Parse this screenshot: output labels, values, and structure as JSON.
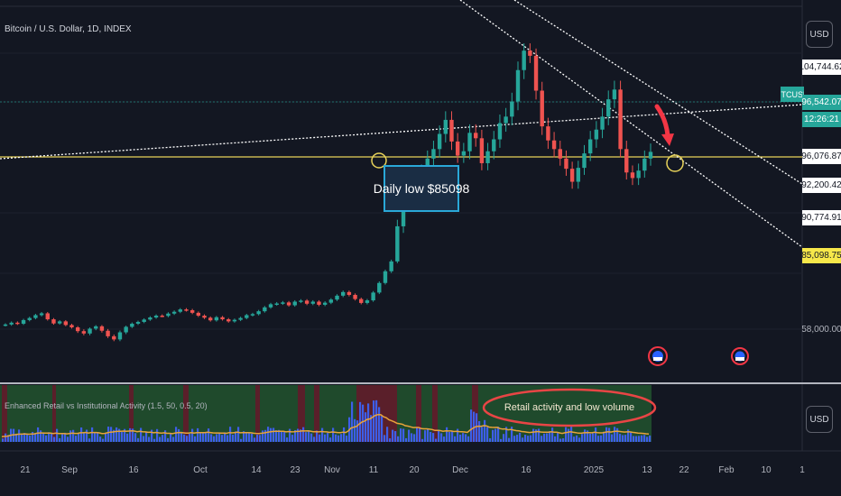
{
  "chart": {
    "symbol_title": "Bitcoin / U.S. Dollar, 1D, INDEX",
    "currency_button": "USD",
    "price_labels": {
      "top_cut": "104,744.62",
      "ticker": "BTCUSD",
      "current_price": "96,542.07",
      "countdown": "12:26:21",
      "p1": "96,076.87",
      "p2": "92,200.42",
      "p3": "90,774.91",
      "daily_low": "85,098.75",
      "axis_low": "58,000.00"
    },
    "annotations": {
      "daily_low_label": "Daily low $85098",
      "retail_label": "Retail activity and low volume"
    },
    "colors": {
      "background": "#131722",
      "up_candle": "#26a69a",
      "down_candle": "#ef5350",
      "horizontal_line": "#e8d35a",
      "trend_lines": "#ffffff",
      "arrow": "#f23645",
      "annotation_border": "#2aa8d8",
      "ellipse": "#e84545",
      "volume_bar": "#3e5ee8",
      "volume_ma": "#e8a33a",
      "panel_green": "#1f4a2c",
      "panel_red": "#5a1f2a"
    }
  },
  "indicator": {
    "title": "Enhanced Retail vs Institutional Activity (1.5, 50, 0.5, 20)",
    "currency_button": "USD"
  },
  "x_axis": {
    "labels": [
      "21",
      "Sep",
      "16",
      "Oct",
      "14",
      "23",
      "Nov",
      "11",
      "20",
      "Dec",
      "16",
      "2025",
      "13",
      "22",
      "Feb",
      "10",
      "1"
    ]
  },
  "chart_data": {
    "type": "candlestick",
    "title": "Bitcoin / U.S. Dollar, 1D, INDEX",
    "series": [
      {
        "name": "BTCUSD",
        "values": [
          59800,
          60500,
          60100,
          61500,
          62300,
          63400,
          64100,
          61800,
          60200,
          61000,
          59600,
          58700,
          57500,
          56900,
          58200,
          59100,
          57600,
          56200,
          55400,
          57200,
          58900,
          60100,
          60800,
          61700,
          62500,
          63200,
          63100,
          64000,
          64700,
          65600,
          65300,
          64300,
          63200,
          62400,
          61400,
          62600,
          61800,
          61000,
          61600,
          62300,
          63400,
          63800,
          64900,
          66400,
          67600,
          67900,
          68300,
          67200,
          68600,
          69000,
          67800,
          68600,
          67400,
          68200,
          69400,
          70900,
          72300,
          71200,
          69600,
          68100,
          69100,
          72100,
          75800,
          80300,
          84100,
          88600,
          91200,
          92800,
          93900,
          94500,
          95900,
          96800,
          98200,
          99500,
          97500,
          96200,
          96600,
          98300,
          97800,
          95400,
          96600,
          97700,
          99200,
          99800,
          101200,
          104100,
          106200,
          105600,
          102200,
          98900,
          97600,
          96800,
          95900,
          94800,
          93400,
          94900,
          96400,
          97700,
          98600,
          99800,
          101400,
          102300,
          96800,
          94400,
          93800,
          94600,
          95900,
          96542
        ]
      }
    ],
    "horizontal_level": 96076.87,
    "daily_low": 85098
  }
}
